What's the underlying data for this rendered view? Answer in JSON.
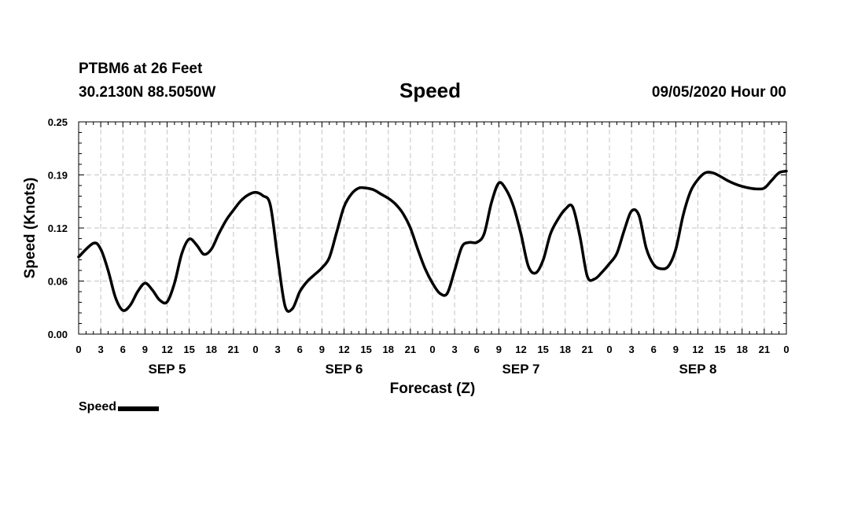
{
  "header": {
    "station": "PTBM6 at 26 Feet",
    "coords": "30.2130N 88.5050W",
    "title": "Speed",
    "datestamp": "09/05/2020 Hour 00"
  },
  "legend": {
    "label": "Speed",
    "color": "#000000"
  },
  "chart_data": {
    "type": "line",
    "title": "Speed",
    "xlabel": "Forecast (Z)",
    "ylabel": "Speed (Knots)",
    "x_unit": "forecast hour",
    "xlim": [
      0,
      96
    ],
    "ylim": [
      0.0,
      0.25
    ],
    "yticks": [
      "0.00",
      "0.06",
      "0.12",
      "0.19",
      "0.25"
    ],
    "xtick_labels": [
      "0",
      "3",
      "6",
      "9",
      "12",
      "15",
      "18",
      "21",
      "0",
      "3",
      "6",
      "9",
      "12",
      "15",
      "18",
      "21",
      "0",
      "3",
      "6",
      "9",
      "12",
      "15",
      "18",
      "21",
      "0",
      "3",
      "6",
      "9",
      "12",
      "15",
      "18",
      "21",
      "0"
    ],
    "day_labels": [
      "SEP 5",
      "SEP 6",
      "SEP 7",
      "SEP 8"
    ],
    "grid": true,
    "legend_position": "bottom-left",
    "series": [
      {
        "name": "Speed",
        "color": "#000000",
        "x": [
          0,
          2,
          3,
          4,
          5,
          6,
          7,
          8,
          9,
          10,
          11,
          12,
          13,
          14,
          15,
          16,
          17,
          18,
          19,
          20,
          21,
          22,
          23,
          24,
          25,
          26,
          27,
          28,
          29,
          30,
          31,
          32,
          33,
          34,
          35,
          36,
          37,
          38,
          39,
          40,
          41,
          42,
          43,
          44,
          45,
          46,
          47,
          48,
          49,
          50,
          51,
          52,
          53,
          54,
          55,
          56,
          57,
          58,
          59,
          60,
          61,
          62,
          63,
          64,
          65,
          66,
          67,
          68,
          69,
          70,
          71,
          72,
          73,
          74,
          75,
          76,
          77,
          78,
          79,
          80,
          81,
          82,
          83,
          84,
          85,
          86,
          87,
          88,
          89,
          90,
          91,
          92,
          93,
          94,
          95,
          96
        ],
        "values": [
          0.091,
          0.107,
          0.1,
          0.075,
          0.043,
          0.028,
          0.034,
          0.05,
          0.06,
          0.052,
          0.04,
          0.038,
          0.06,
          0.095,
          0.112,
          0.105,
          0.094,
          0.1,
          0.118,
          0.134,
          0.146,
          0.157,
          0.164,
          0.167,
          0.163,
          0.152,
          0.09,
          0.033,
          0.03,
          0.05,
          0.062,
          0.07,
          0.078,
          0.09,
          0.12,
          0.15,
          0.165,
          0.172,
          0.172,
          0.17,
          0.165,
          0.16,
          0.153,
          0.142,
          0.125,
          0.1,
          0.077,
          0.06,
          0.048,
          0.048,
          0.075,
          0.103,
          0.108,
          0.108,
          0.118,
          0.155,
          0.178,
          0.17,
          0.15,
          0.118,
          0.08,
          0.072,
          0.087,
          0.118,
          0.135,
          0.147,
          0.15,
          0.115,
          0.068,
          0.065,
          0.073,
          0.083,
          0.095,
          0.122,
          0.145,
          0.14,
          0.101,
          0.082,
          0.077,
          0.08,
          0.1,
          0.14,
          0.168,
          0.182,
          0.19,
          0.19,
          0.186,
          0.181,
          0.177,
          0.174,
          0.172,
          0.171,
          0.172,
          0.181,
          0.19,
          0.192
        ],
        "note_hidden": null
      }
    ]
  }
}
